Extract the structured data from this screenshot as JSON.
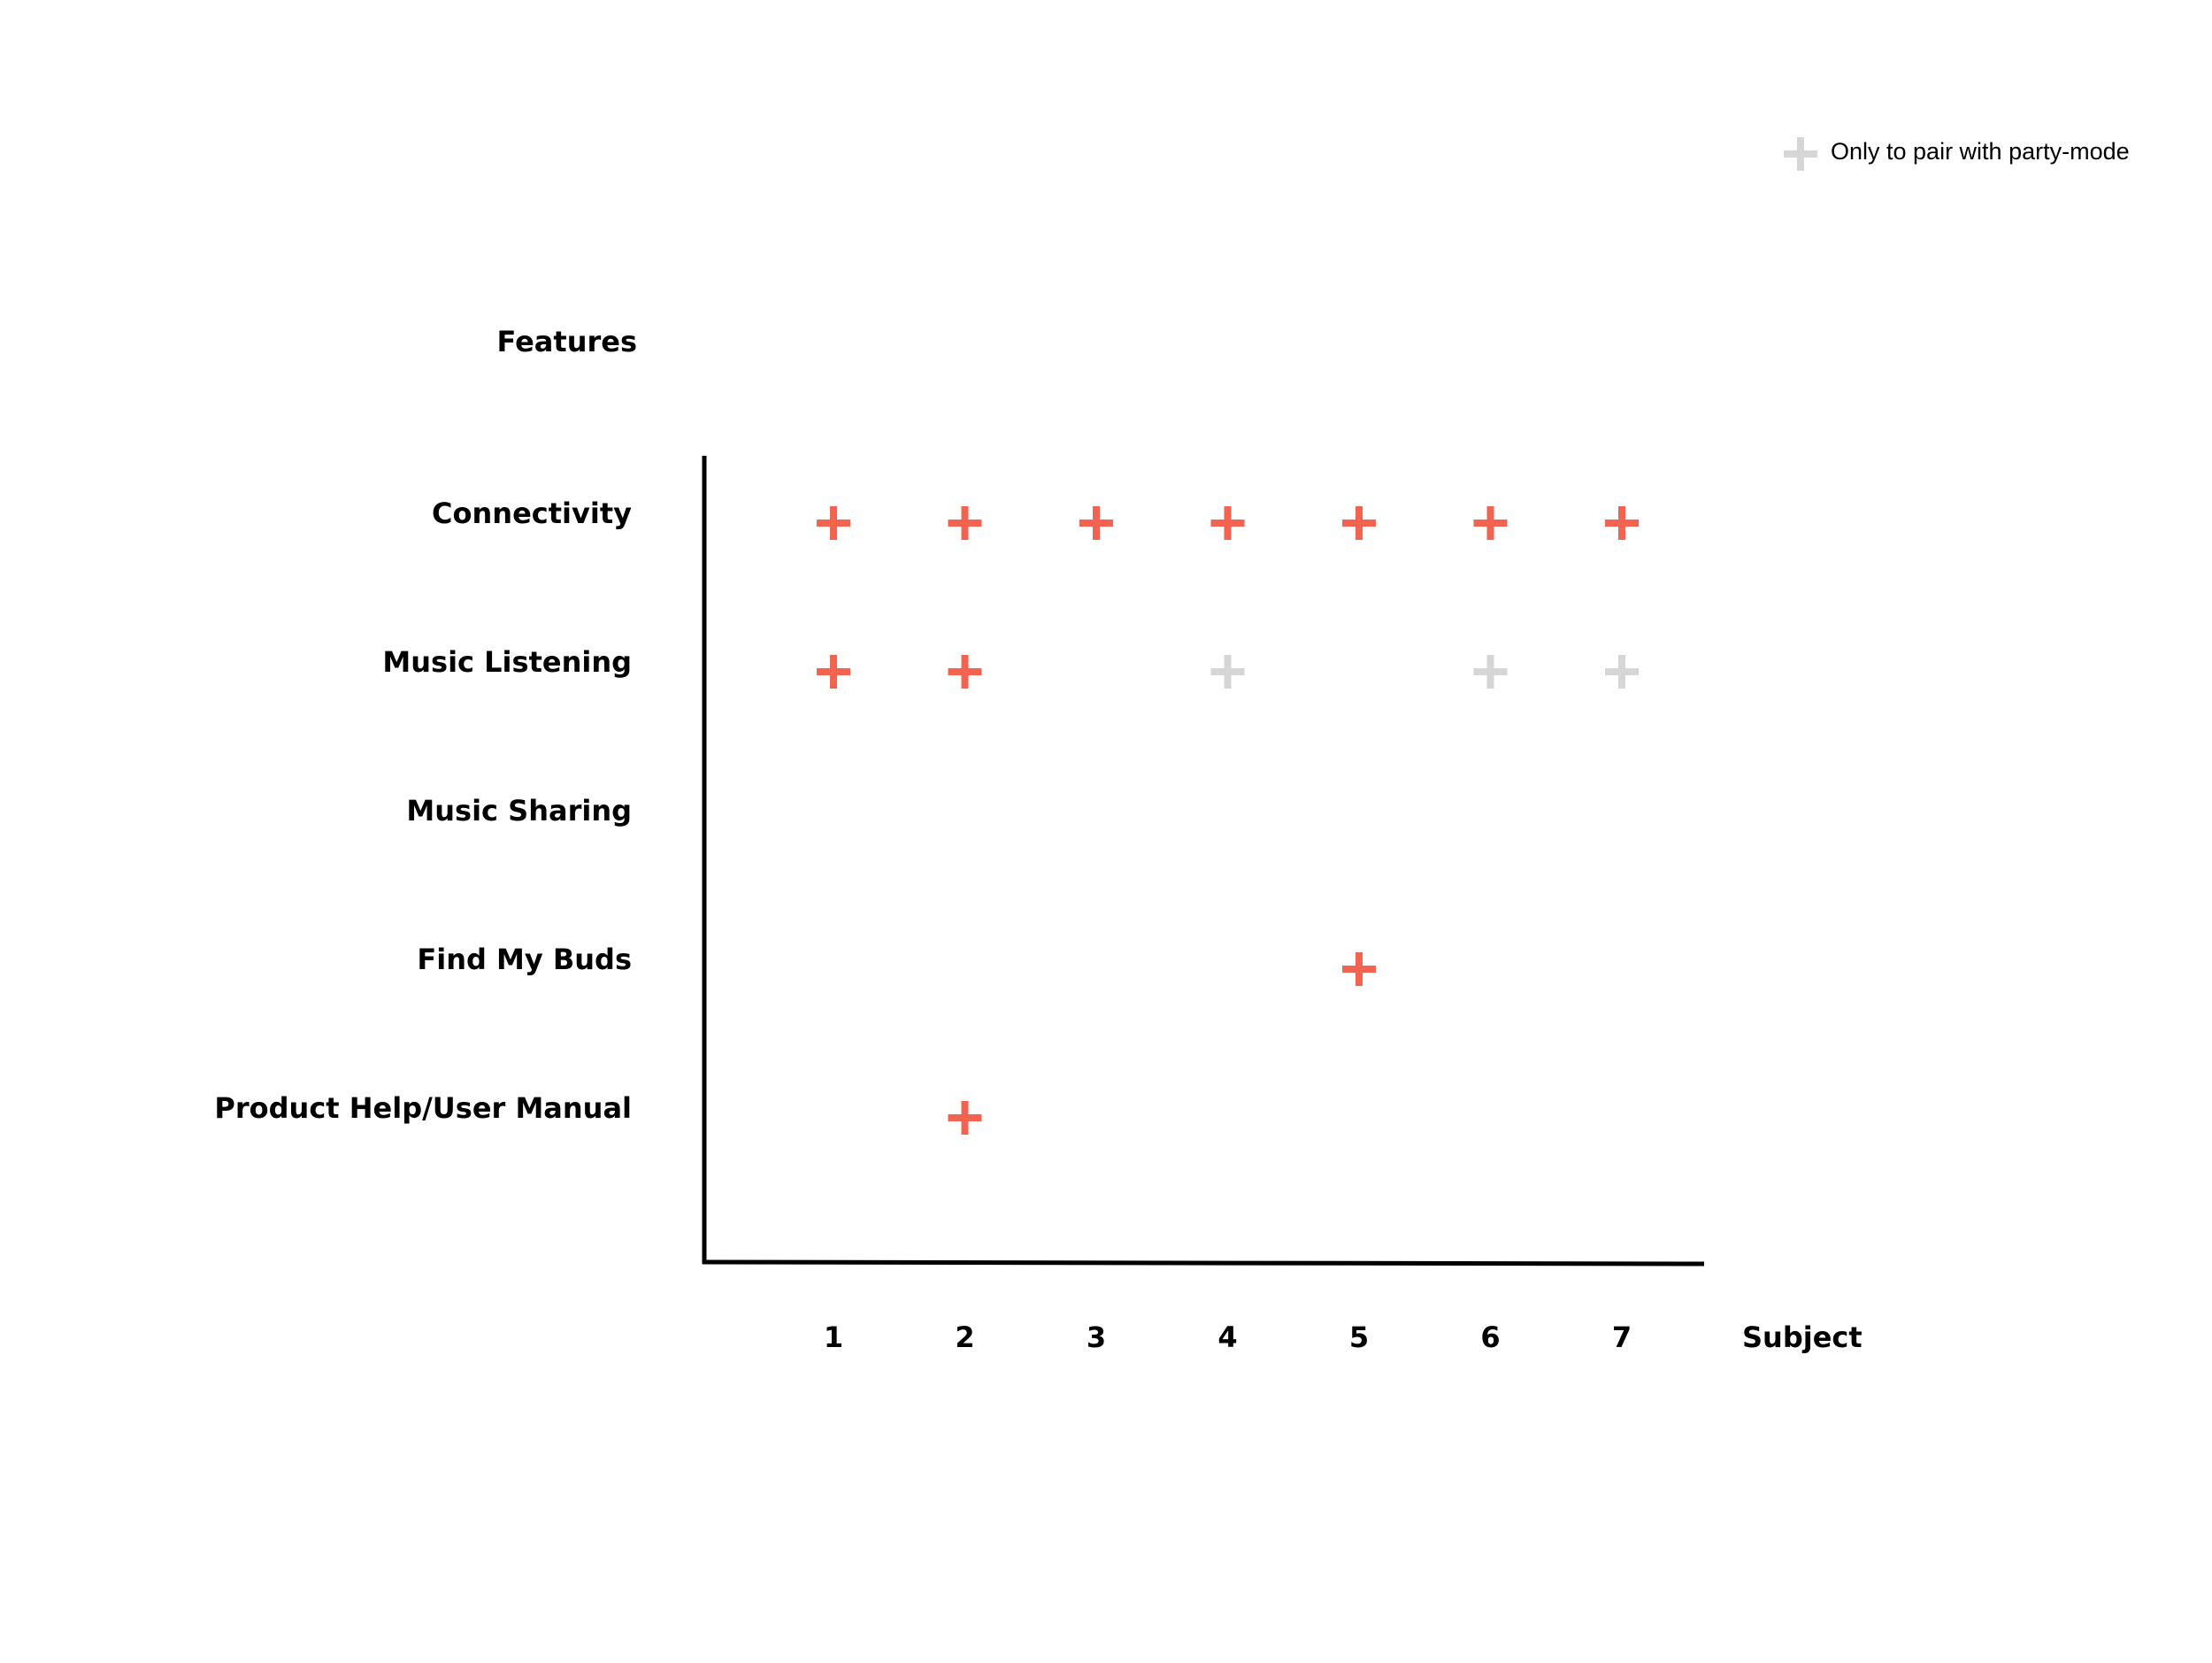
{
  "chart_data": {
    "type": "matrix",
    "y_label": "Features",
    "x_label": "Subject",
    "rows": [
      "Connectivity",
      "Music Listening",
      "Music Sharing",
      "Find My Buds",
      "Product Help/User Manual"
    ],
    "columns": [
      1,
      2,
      3,
      4,
      5,
      6,
      7
    ],
    "cells": [
      [
        "#f26450",
        "#f26450",
        "#f26450",
        "#f26450",
        "#f26450",
        "#f26450",
        "#f26450"
      ],
      [
        "#f26450",
        "#f26450",
        null,
        "#d6d6d6",
        null,
        "#d6d6d6",
        "#d6d6d6"
      ],
      [
        null,
        null,
        null,
        null,
        null,
        null,
        null
      ],
      [
        null,
        null,
        null,
        null,
        "#f26450",
        null,
        null
      ],
      [
        null,
        "#f26450",
        null,
        null,
        null,
        null,
        null
      ]
    ],
    "legend": {
      "label": "Only to pair with party-mode",
      "color": "#d6d6d6"
    }
  }
}
